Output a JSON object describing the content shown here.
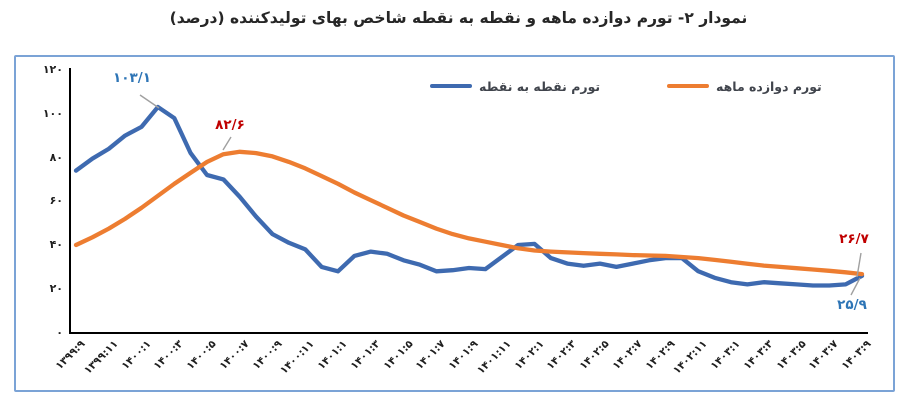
{
  "title": "نمودار ۲- تورم دوازده ماهه و نقطه به نقطه شاخص بهای تولیدکننده (درصد)",
  "legend": {
    "point_to_point": "تورم نقطه به نقطه",
    "twelve_month": "تورم دوازده ماهه"
  },
  "colors": {
    "blue_line": "#3e6ab0",
    "orange_line": "#ed7d31",
    "annotation_blue": "#2e75b6",
    "annotation_red": "#c00000",
    "axis": "#000000",
    "border": "#7ba3d6",
    "leader": "#a0a0a0"
  },
  "chart_data": {
    "type": "line",
    "title": "نمودار ۲- تورم دوازده ماهه و نقطه به نقطه شاخص بهای تولیدکننده (درصد)",
    "xlabel": "",
    "ylabel": "",
    "ylim": [
      0,
      120
    ],
    "grid": false,
    "legend_position": "top",
    "y_ticks": [
      {
        "value": 0,
        "label": "۰"
      },
      {
        "value": 20,
        "label": "۲۰"
      },
      {
        "value": 40,
        "label": "۴۰"
      },
      {
        "value": 60,
        "label": "۶۰"
      },
      {
        "value": 80,
        "label": "۸۰"
      },
      {
        "value": 100,
        "label": "۱۰۰"
      },
      {
        "value": 120,
        "label": "۱۲۰"
      }
    ],
    "x_tick_step_months": 2,
    "x_tick_labels": [
      "۱۳۹۹:۹",
      "۱۳۹۹:۱۱",
      "۱۴۰۰:۱",
      "۱۴۰۰:۳",
      "۱۴۰۰:۵",
      "۱۴۰۰:۷",
      "۱۴۰۰:۹",
      "۱۴۰۰:۱۱",
      "۱۴۰۱:۱",
      "۱۴۰۱:۳",
      "۱۴۰۱:۵",
      "۱۴۰۱:۷",
      "۱۴۰۱:۹",
      "۱۴۰۱:۱۱",
      "۱۴۰۲:۱",
      "۱۴۰۲:۳",
      "۱۴۰۲:۵",
      "۱۴۰۲:۷",
      "۱۴۰۲:۹",
      "۱۴۰۲:۱۱",
      "۱۴۰۳:۱",
      "۱۴۰۳:۳",
      "۱۴۰۳:۵",
      "۱۴۰۳:۷",
      "۱۴۰۳:۹"
    ],
    "series": [
      {
        "name": "تورم نقطه به نقطه",
        "color": "#3e6ab0",
        "values": [
          74,
          79.5,
          84,
          90,
          94,
          103.1,
          98,
          82,
          72,
          70,
          62,
          53,
          45,
          41,
          38,
          30,
          28,
          35,
          37,
          36,
          33,
          31,
          28,
          28.5,
          29.5,
          29,
          34.5,
          40,
          40.5,
          34,
          31.5,
          30.5,
          31.5,
          30,
          31.5,
          33,
          34,
          34,
          28,
          25,
          23,
          22,
          23,
          22.5,
          22,
          21.5,
          21.5,
          22,
          25.9
        ]
      },
      {
        "name": "تورم دوازده ماهه",
        "color": "#ed7d31",
        "values": [
          40,
          43.5,
          47.5,
          52,
          57,
          62.5,
          68,
          73,
          78,
          81.5,
          82.6,
          82,
          80.5,
          78,
          75,
          71.5,
          68,
          64,
          60.5,
          57,
          53.5,
          50.5,
          47.5,
          45,
          43,
          41.5,
          40,
          38.5,
          37.5,
          37,
          36.6,
          36.3,
          36,
          35.7,
          35.4,
          35.2,
          35,
          34.5,
          34,
          33.2,
          32.3,
          31.4,
          30.6,
          30,
          29.4,
          28.8,
          28.2,
          27.5,
          26.7
        ]
      }
    ],
    "annotations": [
      {
        "text": "۱۰۳/۱",
        "value": 103.1,
        "series": "تورم نقطه به نقطه",
        "color": "#2e75b6"
      },
      {
        "text": "۸۲/۶",
        "value": 82.6,
        "series": "تورم دوازده ماهه",
        "color": "#c00000"
      },
      {
        "text": "۲۶/۷",
        "value": 26.7,
        "series": "تورم دوازده ماهه",
        "color": "#c00000"
      },
      {
        "text": "۲۵/۹",
        "value": 25.9,
        "series": "تورم نقطه به نقطه",
        "color": "#2e75b6"
      }
    ]
  }
}
